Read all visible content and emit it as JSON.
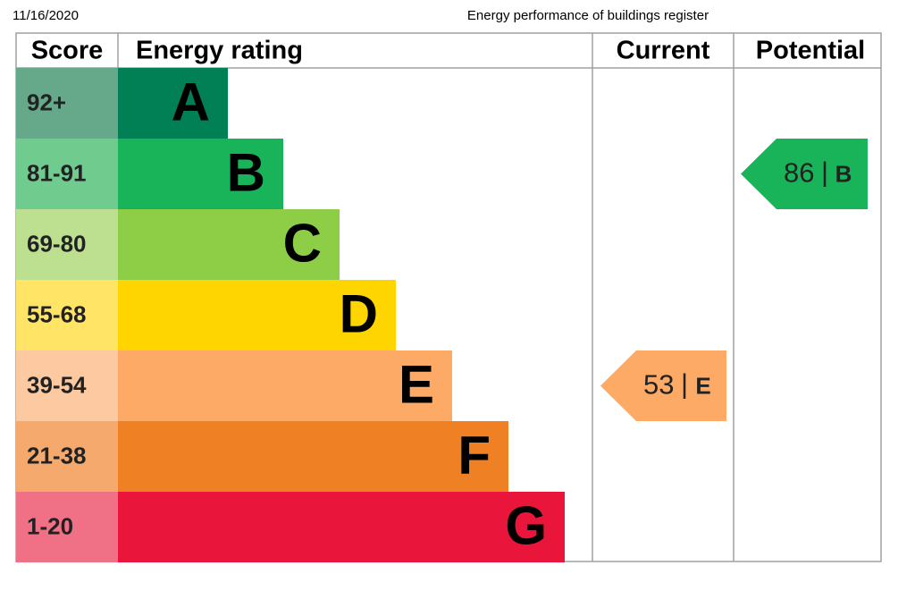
{
  "header": {
    "date": "11/16/2020",
    "title": "Energy performance of buildings register"
  },
  "table": {
    "columns": [
      "Score",
      "Energy rating",
      "Current",
      "Potential"
    ],
    "rows": [
      {
        "score": "92+",
        "rating": "A"
      },
      {
        "score": "81-91",
        "rating": "B"
      },
      {
        "score": "69-80",
        "rating": "C"
      },
      {
        "score": "55-68",
        "rating": "D"
      },
      {
        "score": "39-54",
        "rating": "E"
      },
      {
        "score": "21-38",
        "rating": "F"
      },
      {
        "score": "1-20",
        "rating": "G"
      }
    ]
  },
  "current": {
    "score": 53,
    "separator": "|",
    "rating": "E"
  },
  "potential": {
    "score": 86,
    "separator": "|",
    "rating": "B"
  }
}
